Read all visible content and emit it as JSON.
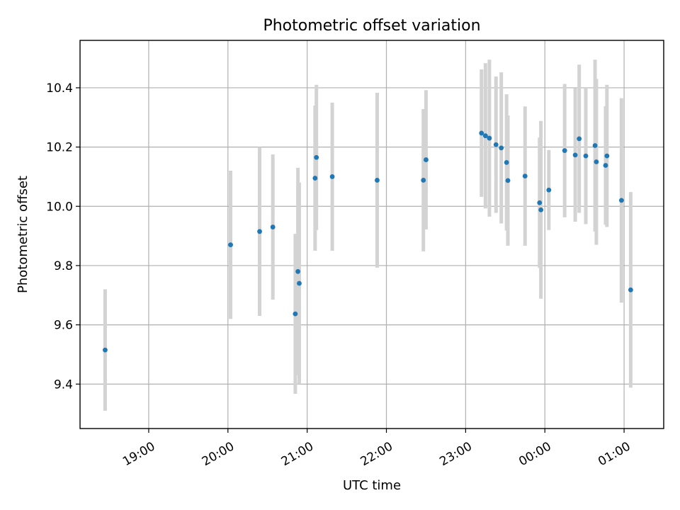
{
  "chart_data": {
    "type": "scatter",
    "title": "Photometric offset variation",
    "xlabel": "UTC time",
    "ylabel": "Photometric offset",
    "x_unit": "UTC",
    "xlim": [
      "18:08",
      "01:30"
    ],
    "ylim": [
      9.25,
      10.56
    ],
    "x_ticks": [
      "19:00",
      "20:00",
      "21:00",
      "22:00",
      "23:00",
      "00:00",
      "01:00"
    ],
    "y_ticks": [
      "9.4",
      "9.6",
      "9.8",
      "10.0",
      "10.2",
      "10.4"
    ],
    "grid": true,
    "error_bar_color": "#d3d3d3",
    "point_color": "#1f77b4",
    "points": [
      {
        "x": "18:27",
        "y": 9.515,
        "err": 0.205
      },
      {
        "x": "20:02",
        "y": 9.87,
        "err": 0.25
      },
      {
        "x": "20:24",
        "y": 9.915,
        "err": 0.285
      },
      {
        "x": "20:34",
        "y": 9.93,
        "err": 0.245
      },
      {
        "x": "20:51",
        "y": 9.637,
        "err": 0.27
      },
      {
        "x": "20:53",
        "y": 9.78,
        "err": 0.35
      },
      {
        "x": "20:54",
        "y": 9.74,
        "err": 0.34
      },
      {
        "x": "21:06",
        "y": 10.095,
        "err": 0.245
      },
      {
        "x": "21:07",
        "y": 10.165,
        "err": 0.245
      },
      {
        "x": "21:19",
        "y": 10.1,
        "err": 0.25
      },
      {
        "x": "21:53",
        "y": 10.088,
        "err": 0.295
      },
      {
        "x": "22:28",
        "y": 10.088,
        "err": 0.24
      },
      {
        "x": "22:30",
        "y": 10.157,
        "err": 0.235
      },
      {
        "x": "23:12",
        "y": 10.247,
        "err": 0.215
      },
      {
        "x": "23:15",
        "y": 10.238,
        "err": 0.245
      },
      {
        "x": "23:18",
        "y": 10.23,
        "err": 0.265
      },
      {
        "x": "23:23",
        "y": 10.208,
        "err": 0.23
      },
      {
        "x": "23:27",
        "y": 10.197,
        "err": 0.255
      },
      {
        "x": "23:31",
        "y": 10.148,
        "err": 0.23
      },
      {
        "x": "23:32",
        "y": 10.087,
        "err": 0.22
      },
      {
        "x": "23:45",
        "y": 10.102,
        "err": 0.235
      },
      {
        "x": "23:56",
        "y": 10.012,
        "err": 0.22
      },
      {
        "x": "23:57",
        "y": 9.988,
        "err": 0.3
      },
      {
        "x": "00:03",
        "y": 10.055,
        "err": 0.135
      },
      {
        "x": "00:15",
        "y": 10.188,
        "err": 0.225
      },
      {
        "x": "00:23",
        "y": 10.173,
        "err": 0.225
      },
      {
        "x": "00:26",
        "y": 10.228,
        "err": 0.25
      },
      {
        "x": "00:31",
        "y": 10.17,
        "err": 0.23
      },
      {
        "x": "00:38",
        "y": 10.205,
        "err": 0.29
      },
      {
        "x": "00:39",
        "y": 10.15,
        "err": 0.28
      },
      {
        "x": "00:46",
        "y": 10.138,
        "err": 0.2
      },
      {
        "x": "00:47",
        "y": 10.17,
        "err": 0.24
      },
      {
        "x": "00:58",
        "y": 10.02,
        "err": 0.345
      },
      {
        "x": "01:05",
        "y": 9.718,
        "err": 0.33
      }
    ]
  }
}
